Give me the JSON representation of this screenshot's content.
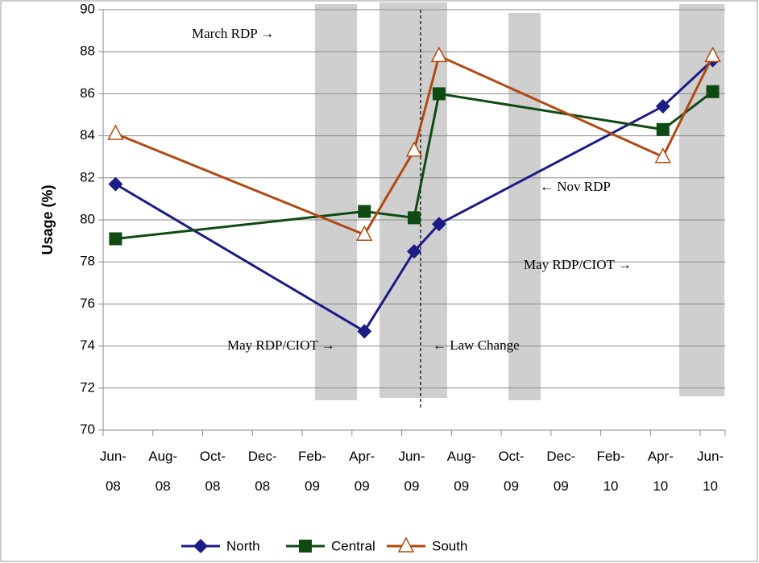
{
  "chart_data": {
    "type": "line",
    "y_label": "Usage (%)",
    "x": [
      "2008-06",
      "2009-04",
      "2009-06",
      "2009-07",
      "2010-04",
      "2010-06"
    ],
    "xlim": [
      "2008-06",
      "2010-06"
    ],
    "xticks": [
      {
        "value": "2008-06",
        "label": "Jun-08"
      },
      {
        "value": "2008-08",
        "label": "Aug-08"
      },
      {
        "value": "2008-10",
        "label": "Oct-08"
      },
      {
        "value": "2008-12",
        "label": "Dec-08"
      },
      {
        "value": "2009-02",
        "label": "Feb-09"
      },
      {
        "value": "2009-04",
        "label": "Apr-09"
      },
      {
        "value": "2009-06",
        "label": "Jun-09"
      },
      {
        "value": "2009-08",
        "label": "Aug-09"
      },
      {
        "value": "2009-10",
        "label": "Oct-09"
      },
      {
        "value": "2009-12",
        "label": "Dec-09"
      },
      {
        "value": "2010-02",
        "label": "Feb-10"
      },
      {
        "value": "2010-04",
        "label": "Apr-10"
      },
      {
        "value": "2010-06",
        "label": "Jun-10"
      }
    ],
    "ylim": [
      70,
      90
    ],
    "yticks": [
      70,
      72,
      74,
      76,
      78,
      80,
      82,
      84,
      86,
      88,
      90
    ],
    "grid": true,
    "legend": "bottom",
    "series": [
      {
        "name": "North",
        "color": "#1c1c84",
        "marker": "diamond",
        "values": [
          81.7,
          74.7,
          78.5,
          79.8,
          85.4,
          87.6
        ]
      },
      {
        "name": "Central",
        "color": "#0f4a12",
        "marker": "square",
        "values": [
          79.1,
          80.4,
          80.1,
          86.0,
          84.3,
          86.1
        ]
      },
      {
        "name": "South",
        "color": "#b04a12",
        "marker": "triangle",
        "values": [
          84.1,
          79.3,
          83.3,
          87.8,
          83.0,
          87.8
        ]
      }
    ],
    "annotations": [
      "March RDP →",
      "← Nov RDP",
      "May RDP/CIOT →",
      "May RDP/CIOT →",
      "← Law Change"
    ]
  }
}
